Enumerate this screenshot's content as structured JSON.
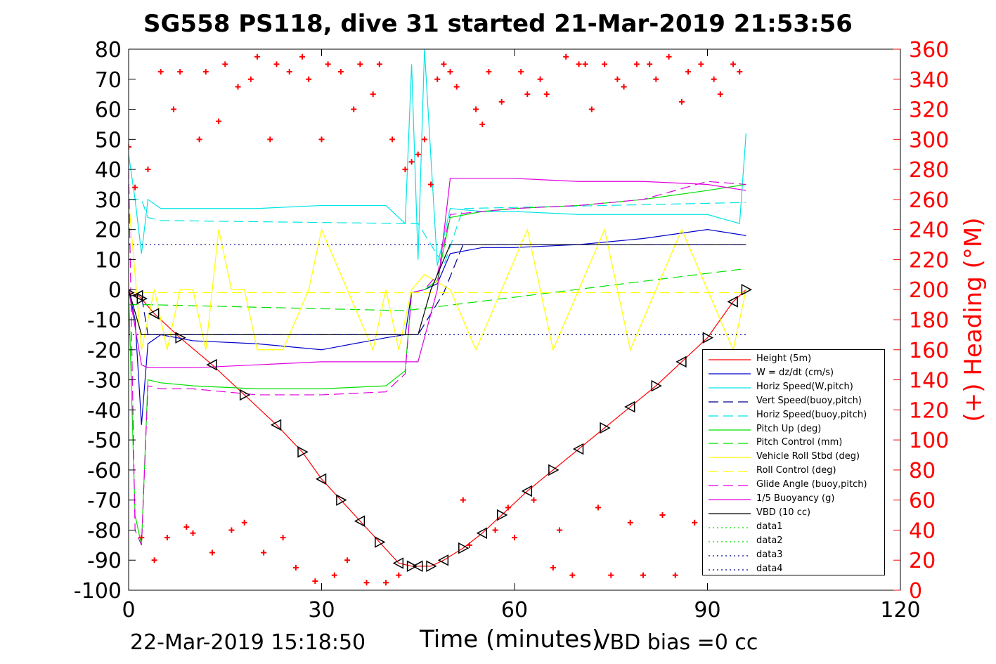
{
  "title": "SG558 PS118, dive 31 started 21-Mar-2019 21:53:56",
  "xlabel": "Time (minutes)",
  "ylabel_right": "(+) Heading (°M)",
  "footer": {
    "left": "22-Mar-2019 15:18:50",
    "right": "VBD bias =0 cc"
  },
  "colors": {
    "height": "#ff0000",
    "w": "#0000cc",
    "horiz": "#00e5e5",
    "vert_buoy": "#00008b",
    "pitch": "#00e000",
    "roll": "#ffff00",
    "glide": "#e000e0",
    "buoyancy": "#e000e0",
    "vbd": "#000000",
    "heading": "#ff0000"
  },
  "legend": [
    {
      "label": "Height (5m)",
      "color": "#ff0000",
      "style": "solid"
    },
    {
      "label": "W = dz/dt (cm/s)",
      "color": "#0000cc",
      "style": "solid"
    },
    {
      "label": "Horiz Speed(W,pitch)",
      "color": "#00e5e5",
      "style": "solid"
    },
    {
      "label": "Vert Speed(buoy,pitch)",
      "color": "#00008b",
      "style": "dashed"
    },
    {
      "label": "Horiz Speed(buoy,pitch)",
      "color": "#00e5e5",
      "style": "dashed"
    },
    {
      "label": "Pitch Up (deg)",
      "color": "#00e000",
      "style": "solid"
    },
    {
      "label": "Pitch Control (mm)",
      "color": "#00e000",
      "style": "dashed"
    },
    {
      "label": "Vehicle Roll Stbd (deg)",
      "color": "#ffff00",
      "style": "solid"
    },
    {
      "label": "Roll Control (deg)",
      "color": "#ffff00",
      "style": "dashed"
    },
    {
      "label": "Glide Angle (buoy,pitch)",
      "color": "#e000e0",
      "style": "dashed"
    },
    {
      "label": "1/5 Buoyancy (g)",
      "color": "#e000e0",
      "style": "solid"
    },
    {
      "label": "VBD (10 cc)",
      "color": "#000000",
      "style": "solid"
    },
    {
      "label": "data1",
      "color": "#00e000",
      "style": "dotted"
    },
    {
      "label": "data2",
      "color": "#00e000",
      "style": "dotted"
    },
    {
      "label": "data3",
      "color": "#00008b",
      "style": "dotted"
    },
    {
      "label": "data4",
      "color": "#00008b",
      "style": "dotted"
    }
  ],
  "chart_data": {
    "type": "line",
    "xlim": [
      0,
      120
    ],
    "ylim": [
      -100,
      80
    ],
    "y2lim": [
      0,
      360
    ],
    "xticks": [
      0,
      30,
      60,
      90,
      120
    ],
    "yticks": [
      80,
      70,
      60,
      50,
      40,
      30,
      20,
      10,
      0,
      -10,
      -20,
      -30,
      -40,
      -50,
      -60,
      -70,
      -80,
      -90,
      -100
    ],
    "y2ticks": [
      360,
      340,
      320,
      300,
      280,
      260,
      240,
      220,
      200,
      180,
      160,
      140,
      120,
      100,
      80,
      60,
      40,
      20,
      0
    ],
    "grid": false,
    "legend_position": "lower-right",
    "series": [
      {
        "name": "Height (5m)",
        "x": [
          0,
          1.5,
          2,
          4,
          8,
          13,
          18,
          23,
          27,
          30,
          33,
          36,
          39,
          42,
          44,
          45,
          47,
          49,
          52,
          55,
          58,
          62,
          66,
          70,
          74,
          78,
          82,
          86,
          90,
          94,
          96
        ],
        "y": [
          -1,
          -2,
          -3,
          -8,
          -16,
          -25,
          -35,
          -45,
          -54,
          -63,
          -70,
          -77,
          -84,
          -91,
          -92,
          -92,
          -92,
          -90,
          -86,
          -81,
          -75,
          -67,
          -60,
          -53,
          -46,
          -39,
          -32,
          -24,
          -16,
          -4,
          0
        ]
      },
      {
        "name": "W = dz/dt (cm/s)",
        "x": [
          0,
          1,
          2,
          3,
          5,
          10,
          20,
          30,
          40,
          43,
          44,
          46,
          48,
          50,
          55,
          60,
          70,
          80,
          90,
          96
        ],
        "y": [
          0,
          -10,
          -45,
          -18,
          -15,
          -17,
          -18,
          -20,
          -16,
          -15,
          -1,
          0,
          2,
          12,
          14,
          14,
          15,
          17,
          20,
          18
        ]
      },
      {
        "name": "Horiz Speed(W,pitch)",
        "x": [
          0,
          1,
          2,
          3,
          5,
          10,
          20,
          30,
          40,
          43,
          44,
          45,
          46,
          48,
          50,
          55,
          60,
          70,
          80,
          90,
          95,
          96
        ],
        "y": [
          45,
          30,
          12,
          30,
          27,
          27,
          27,
          28,
          28,
          22,
          75,
          10,
          80,
          8,
          27,
          26,
          26,
          25,
          25,
          25,
          22,
          52
        ]
      },
      {
        "name": "Vert Speed(buoy,pitch)",
        "x": [
          0,
          2,
          3,
          5,
          43,
          45,
          49,
          52,
          96
        ],
        "y": [
          -2,
          -2,
          -15,
          -15,
          -15,
          -15,
          -1,
          15,
          15
        ]
      },
      {
        "name": "Horiz Speed(buoy,pitch)",
        "x": [
          0,
          2,
          3,
          5,
          43,
          45,
          49,
          52,
          96
        ],
        "y": [
          30,
          30,
          24,
          23,
          22,
          22,
          8,
          27,
          29
        ]
      },
      {
        "name": "Pitch Up (deg)",
        "x": [
          0,
          1,
          2,
          3,
          5,
          10,
          20,
          30,
          40,
          43,
          44,
          46,
          48,
          50,
          55,
          60,
          70,
          80,
          90,
          96
        ],
        "y": [
          0,
          -75,
          -85,
          -30,
          -31,
          -32,
          -33,
          -33,
          -32,
          -27,
          -1,
          0,
          3,
          24,
          26,
          27,
          28,
          30,
          33,
          35
        ]
      },
      {
        "name": "Pitch Control (mm)",
        "x": [
          0,
          3,
          43,
          96
        ],
        "y": [
          -5,
          -5,
          -7,
          7
        ]
      },
      {
        "name": "Vehicle Roll Stbd (deg)",
        "x": [
          0,
          2,
          4,
          6,
          8,
          10,
          12,
          14,
          16,
          18,
          20,
          24,
          28,
          30,
          34,
          38,
          40,
          42,
          44,
          46,
          50,
          54,
          58,
          62,
          66,
          70,
          74,
          78,
          82,
          86,
          90,
          94,
          96
        ],
        "y": [
          30,
          -20,
          0,
          -20,
          0,
          0,
          -20,
          20,
          0,
          0,
          -20,
          -20,
          0,
          20,
          0,
          -20,
          0,
          -20,
          0,
          5,
          0,
          -20,
          0,
          20,
          -20,
          0,
          20,
          -20,
          0,
          20,
          0,
          -20,
          0
        ]
      },
      {
        "name": "Roll Control (deg)",
        "x": [
          0,
          96
        ],
        "y": [
          -1,
          -1
        ]
      },
      {
        "name": "Glide Angle (buoy,pitch)",
        "x": [
          0,
          1,
          2,
          3,
          5,
          10,
          20,
          30,
          40,
          43,
          44,
          46,
          48,
          50,
          55,
          60,
          70,
          80,
          90,
          96
        ],
        "y": [
          40,
          -80,
          -85,
          -32,
          -33,
          -33,
          -35,
          -35,
          -34,
          -28,
          -1,
          0,
          5,
          25,
          26,
          27,
          28,
          30,
          36,
          35
        ]
      },
      {
        "name": "1/5 Buoyancy (g)",
        "x": [
          0,
          2,
          3,
          10,
          20,
          30,
          40,
          44,
          45,
          48,
          50,
          60,
          70,
          80,
          90,
          96
        ],
        "y": [
          0,
          -25,
          -26,
          -26,
          -25,
          -24,
          -24,
          -24,
          -24,
          0,
          37,
          37,
          36,
          36,
          35,
          33
        ]
      },
      {
        "name": "VBD (10 cc)",
        "x": [
          0,
          2,
          3,
          44,
          45,
          47,
          50,
          96
        ],
        "y": [
          0,
          -15,
          -15,
          -15,
          -15,
          0,
          15,
          15
        ]
      },
      {
        "name": "data3",
        "x": [
          0,
          96
        ],
        "y": [
          15,
          15
        ]
      },
      {
        "name": "data4",
        "x": [
          0,
          96
        ],
        "y": [
          -15,
          -15
        ]
      }
    ],
    "heading_axis": "right",
    "heading_series": {
      "name": "(+) Heading (°M)",
      "x": [
        0,
        1,
        2,
        3,
        4,
        5,
        6,
        7,
        8,
        9,
        10,
        11,
        12,
        13,
        14,
        15,
        16,
        17,
        18,
        19,
        20,
        21,
        22,
        23,
        24,
        25,
        26,
        27,
        28,
        29,
        30,
        31,
        32,
        33,
        34,
        35,
        36,
        37,
        38,
        39,
        40,
        41,
        42,
        43,
        44,
        45,
        46,
        47,
        48,
        49,
        50,
        51,
        52,
        53,
        54,
        55,
        56,
        57,
        58,
        59,
        60,
        61,
        62,
        63,
        64,
        65,
        66,
        67,
        68,
        69,
        70,
        71,
        72,
        73,
        74,
        75,
        76,
        77,
        78,
        79,
        80,
        81,
        82,
        83,
        84,
        85,
        86,
        87,
        88,
        89,
        90,
        91,
        92,
        93,
        94,
        95
      ],
      "y": [
        295,
        268,
        35,
        280,
        20,
        345,
        35,
        320,
        345,
        42,
        38,
        300,
        345,
        25,
        312,
        350,
        40,
        335,
        45,
        340,
        355,
        25,
        300,
        350,
        35,
        345,
        15,
        355,
        340,
        6,
        300,
        350,
        10,
        345,
        20,
        320,
        350,
        5,
        330,
        350,
        5,
        300,
        10,
        280,
        285,
        290,
        300,
        270,
        340,
        350,
        345,
        335,
        60,
        30,
        320,
        310,
        345,
        40,
        325,
        55,
        35,
        345,
        330,
        60,
        340,
        330,
        15,
        40,
        355,
        10,
        350,
        350,
        320,
        55,
        350,
        10,
        340,
        335,
        45,
        350,
        10,
        350,
        340,
        50,
        355,
        10,
        325,
        345,
        45,
        350,
        15,
        340,
        330,
        20,
        350,
        345
      ]
    }
  }
}
